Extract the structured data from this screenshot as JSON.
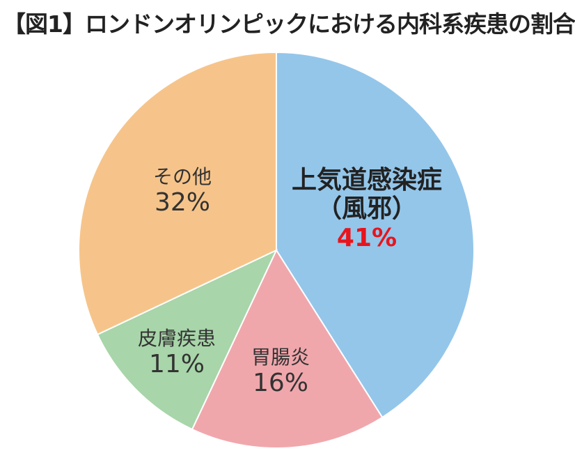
{
  "chart_data": {
    "type": "pie",
    "title": "【図1】ロンドンオリンピックにおける内科系疾患の割合",
    "slices": [
      {
        "label": "上気道感染症",
        "sublabel": "（風邪）",
        "value": 41,
        "value_label": "41%",
        "color": "#94c6ea",
        "label_color": "#222222",
        "value_color": "#e8141c"
      },
      {
        "label": "胃腸炎",
        "value": 16,
        "value_label": "16%",
        "color": "#f0a7ac"
      },
      {
        "label": "皮膚疾患",
        "value": 11,
        "value_label": "11%",
        "color": "#a8d5a9"
      },
      {
        "label": "その他",
        "value": 32,
        "value_label": "32%",
        "color": "#f6c48a"
      }
    ],
    "start": "top",
    "direction": "clockwise",
    "legend": "none"
  }
}
